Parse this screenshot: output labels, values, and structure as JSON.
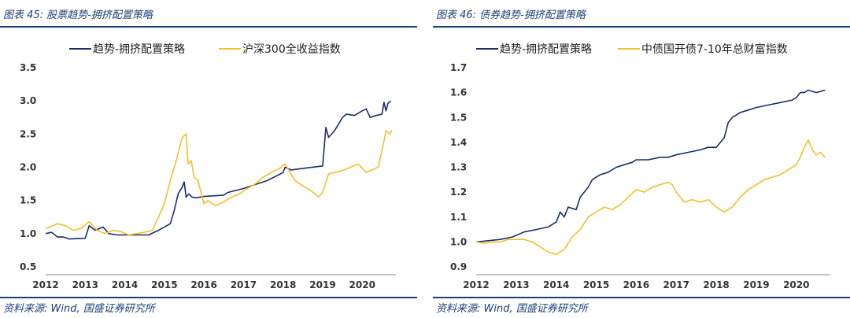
{
  "panels": [
    {
      "title": "图表 45:  股票趋势-拥挤配置策略",
      "source": "资料来源:  Wind, 国盛证券研究所"
    },
    {
      "title": "图表 46:  债券趋势-拥挤配置策略",
      "source": "资料来源:  Wind, 国盛证券研究所"
    }
  ],
  "chart_data": [
    {
      "type": "line",
      "title": "",
      "xlabel": "",
      "ylabel": "",
      "xlim": [
        2012,
        2020.85
      ],
      "ylim": [
        0.5,
        3.5
      ],
      "yticks": [
        0.5,
        1.0,
        1.5,
        2.0,
        2.5,
        3.0,
        3.5
      ],
      "ytick_labels": [
        "0.5",
        "1.0",
        "1.5",
        "2.0",
        "2.5",
        "3.0",
        "3.5"
      ],
      "xticks": [
        2012,
        2013,
        2014,
        2015,
        2016,
        2017,
        2018,
        2019,
        2020
      ],
      "xtick_labels": [
        "2012",
        "2013",
        "2014",
        "2015",
        "2016",
        "2017",
        "2018",
        "2019",
        "2020"
      ],
      "legend_position": "top",
      "series": [
        {
          "name": "趋势-拥挤配置策略",
          "color": "#1b2d6b",
          "x": [
            2012.0,
            2012.15,
            2012.3,
            2012.45,
            2012.6,
            2013.0,
            2013.1,
            2013.25,
            2013.45,
            2013.6,
            2013.8,
            2014.0,
            2014.3,
            2014.6,
            2014.85,
            2015.0,
            2015.15,
            2015.25,
            2015.35,
            2015.45,
            2015.5,
            2015.55,
            2015.62,
            2015.7,
            2015.8,
            2016.0,
            2016.5,
            2016.6,
            2016.8,
            2017.0,
            2017.3,
            2017.6,
            2018.0,
            2018.05,
            2018.2,
            2019.0,
            2019.08,
            2019.15,
            2019.3,
            2019.5,
            2019.6,
            2019.8,
            2020.0,
            2020.1,
            2020.2,
            2020.35,
            2020.5,
            2020.55,
            2020.6,
            2020.65,
            2020.72
          ],
          "values": [
            1.0,
            1.02,
            0.95,
            0.95,
            0.92,
            0.93,
            1.12,
            1.05,
            1.1,
            1.0,
            0.98,
            0.98,
            0.98,
            0.98,
            1.05,
            1.1,
            1.15,
            1.35,
            1.6,
            1.7,
            1.78,
            1.55,
            1.6,
            1.55,
            1.54,
            1.56,
            1.58,
            1.62,
            1.65,
            1.68,
            1.74,
            1.8,
            1.92,
            2.0,
            1.96,
            2.02,
            2.6,
            2.45,
            2.55,
            2.75,
            2.8,
            2.78,
            2.85,
            2.88,
            2.75,
            2.78,
            2.8,
            2.98,
            2.85,
            2.96,
            3.0
          ]
        },
        {
          "name": "沪深300全收益指数",
          "color": "#f2c12e",
          "x": [
            2012.0,
            2012.1,
            2012.3,
            2012.5,
            2012.7,
            2012.9,
            2013.1,
            2013.3,
            2013.5,
            2013.7,
            2013.9,
            2014.1,
            2014.3,
            2014.5,
            2014.7,
            2014.85,
            2015.0,
            2015.15,
            2015.3,
            2015.45,
            2015.55,
            2015.6,
            2015.68,
            2015.75,
            2015.85,
            2016.0,
            2016.1,
            2016.3,
            2016.5,
            2016.7,
            2016.9,
            2017.1,
            2017.3,
            2017.5,
            2017.7,
            2017.9,
            2018.05,
            2018.15,
            2018.3,
            2018.5,
            2018.7,
            2018.9,
            2019.0,
            2019.15,
            2019.3,
            2019.5,
            2019.7,
            2019.9,
            2020.1,
            2020.2,
            2020.4,
            2020.5,
            2020.6,
            2020.7,
            2020.75
          ],
          "values": [
            1.08,
            1.1,
            1.15,
            1.12,
            1.05,
            1.08,
            1.18,
            1.05,
            1.0,
            1.05,
            1.03,
            0.98,
            1.0,
            1.02,
            1.05,
            1.25,
            1.45,
            1.8,
            2.1,
            2.45,
            2.5,
            2.05,
            2.1,
            1.85,
            1.8,
            1.45,
            1.5,
            1.42,
            1.48,
            1.55,
            1.6,
            1.68,
            1.75,
            1.85,
            1.92,
            1.98,
            2.05,
            1.95,
            1.8,
            1.72,
            1.65,
            1.55,
            1.62,
            1.9,
            1.92,
            1.95,
            2.0,
            2.05,
            1.92,
            1.95,
            2.0,
            2.25,
            2.55,
            2.5,
            2.56
          ]
        }
      ]
    },
    {
      "type": "line",
      "title": "",
      "xlabel": "",
      "ylabel": "",
      "xlim": [
        2012,
        2020.85
      ],
      "ylim": [
        0.9,
        1.7
      ],
      "yticks": [
        0.9,
        1.0,
        1.1,
        1.2,
        1.3,
        1.4,
        1.5,
        1.6,
        1.7
      ],
      "ytick_labels": [
        "0.9",
        "1.0",
        "1.1",
        "1.2",
        "1.3",
        "1.4",
        "1.5",
        "1.6",
        "1.7"
      ],
      "xticks": [
        2012,
        2013,
        2014,
        2015,
        2016,
        2017,
        2018,
        2019,
        2020
      ],
      "xtick_labels": [
        "2012",
        "2013",
        "2014",
        "2015",
        "2016",
        "2017",
        "2018",
        "2019",
        "2020"
      ],
      "legend_position": "top",
      "series": [
        {
          "name": "趋势-拥挤配置策略",
          "color": "#1b2d6b",
          "x": [
            2012.0,
            2012.3,
            2012.6,
            2012.9,
            2013.2,
            2013.5,
            2013.8,
            2014.0,
            2014.1,
            2014.2,
            2014.3,
            2014.5,
            2014.6,
            2014.7,
            2014.8,
            2014.9,
            2015.0,
            2015.1,
            2015.3,
            2015.5,
            2015.7,
            2015.9,
            2016.0,
            2016.1,
            2016.3,
            2016.6,
            2016.8,
            2017.0,
            2017.3,
            2017.6,
            2017.8,
            2018.0,
            2018.1,
            2018.2,
            2018.3,
            2018.4,
            2018.5,
            2018.6,
            2018.8,
            2019.0,
            2019.3,
            2019.6,
            2019.9,
            2020.0,
            2020.1,
            2020.2,
            2020.3,
            2020.5,
            2020.72
          ],
          "values": [
            1.0,
            1.005,
            1.01,
            1.02,
            1.04,
            1.05,
            1.06,
            1.08,
            1.12,
            1.1,
            1.14,
            1.13,
            1.18,
            1.2,
            1.22,
            1.25,
            1.26,
            1.27,
            1.28,
            1.3,
            1.31,
            1.32,
            1.33,
            1.33,
            1.33,
            1.34,
            1.34,
            1.35,
            1.36,
            1.37,
            1.38,
            1.38,
            1.4,
            1.42,
            1.48,
            1.5,
            1.51,
            1.52,
            1.53,
            1.54,
            1.55,
            1.56,
            1.57,
            1.58,
            1.6,
            1.6,
            1.61,
            1.6,
            1.61
          ]
        },
        {
          "name": "中债国开债7-10年总财富指数",
          "color": "#f2c12e",
          "x": [
            2012.0,
            2012.2,
            2012.4,
            2012.6,
            2012.8,
            2013.0,
            2013.2,
            2013.4,
            2013.6,
            2013.8,
            2014.0,
            2014.1,
            2014.2,
            2014.4,
            2014.6,
            2014.8,
            2015.0,
            2015.2,
            2015.4,
            2015.6,
            2015.8,
            2016.0,
            2016.2,
            2016.4,
            2016.6,
            2016.8,
            2016.9,
            2017.0,
            2017.2,
            2017.4,
            2017.6,
            2017.8,
            2018.0,
            2018.2,
            2018.4,
            2018.6,
            2018.8,
            2019.0,
            2019.2,
            2019.4,
            2019.6,
            2019.8,
            2020.0,
            2020.1,
            2020.2,
            2020.3,
            2020.4,
            2020.5,
            2020.6,
            2020.72
          ],
          "values": [
            1.0,
            0.995,
            1.0,
            1.0,
            1.01,
            1.01,
            1.01,
            1.0,
            0.98,
            0.96,
            0.95,
            0.96,
            0.97,
            1.02,
            1.05,
            1.1,
            1.12,
            1.14,
            1.13,
            1.15,
            1.18,
            1.21,
            1.2,
            1.22,
            1.23,
            1.24,
            1.23,
            1.2,
            1.16,
            1.17,
            1.16,
            1.17,
            1.14,
            1.12,
            1.14,
            1.18,
            1.21,
            1.23,
            1.25,
            1.26,
            1.27,
            1.29,
            1.31,
            1.34,
            1.38,
            1.41,
            1.37,
            1.35,
            1.36,
            1.34
          ]
        }
      ]
    }
  ]
}
